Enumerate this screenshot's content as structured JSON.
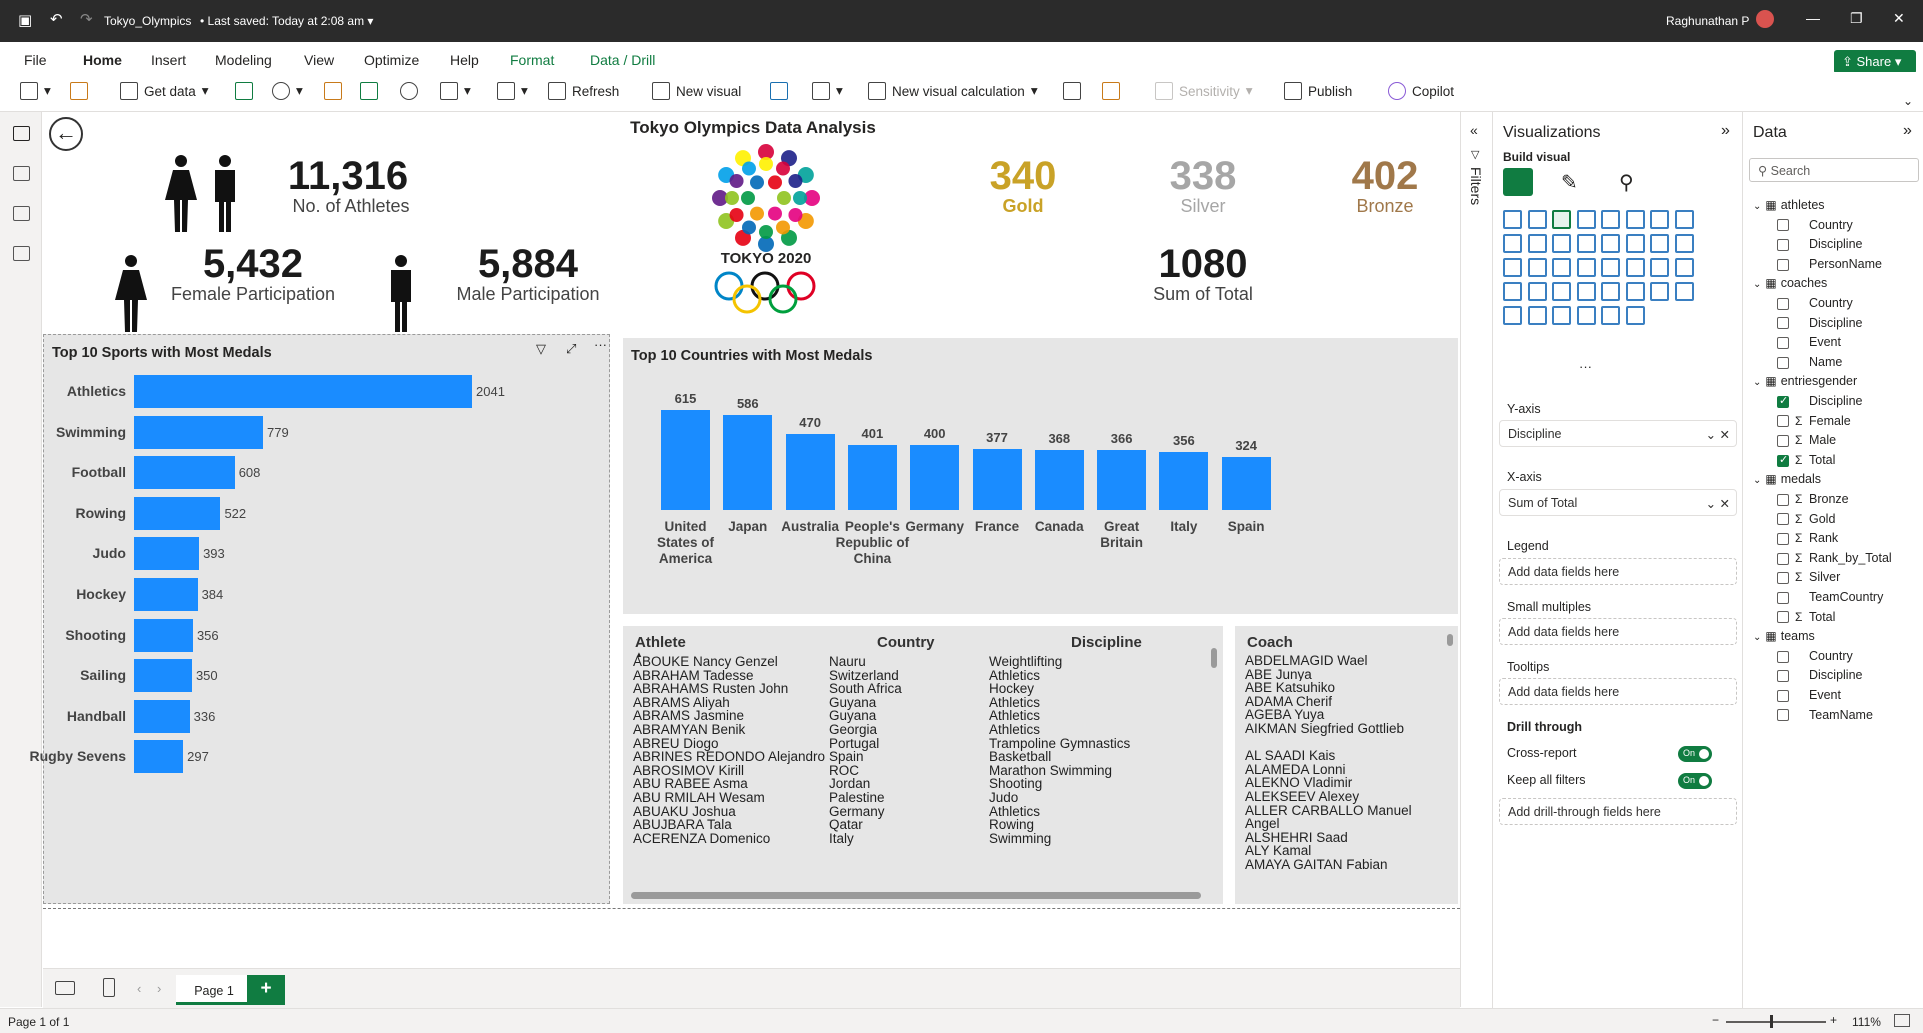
{
  "titlebar": {
    "filename": "Tokyo_Olympics",
    "saved": "Last saved: Today at 2:08 am",
    "user": "Raghunathan P"
  },
  "menu": {
    "tabs": [
      "File",
      "Home",
      "Insert",
      "Modeling",
      "View",
      "Optimize",
      "Help",
      "Format",
      "Data / Drill"
    ],
    "share": "Share"
  },
  "toolbar": {
    "get_data": "Get data",
    "refresh": "Refresh",
    "new_visual": "New visual",
    "new_visual_calc": "New visual calculation",
    "sensitivity": "Sensitivity",
    "publish": "Publish",
    "copilot": "Copilot"
  },
  "report": {
    "title": "Tokyo Olympics Data Analysis",
    "athletes_value": "11,316",
    "athletes_label": "No. of Athletes",
    "female_value": "5,432",
    "female_label": "Female Participation",
    "male_value": "5,884",
    "male_label": "Male Participation",
    "logo_text": "TOKYO 2020",
    "gold_value": "340",
    "gold_label": "Gold",
    "silver_value": "338",
    "silver_label": "Silver",
    "bronze_value": "402",
    "bronze_label": "Bronze",
    "total_value": "1080",
    "total_label": "Sum of Total",
    "gold_color": "#c9a227",
    "silver_color": "#a6a6a6",
    "bronze_color": "#a0784a"
  },
  "chart_data": [
    {
      "type": "bar",
      "orientation": "horizontal",
      "title": "Top 10 Sports with Most Medals",
      "categories": [
        "Athletics",
        "Swimming",
        "Football",
        "Rowing",
        "Judo",
        "Hockey",
        "Shooting",
        "Sailing",
        "Handball",
        "Rugby Sevens"
      ],
      "values": [
        2041,
        779,
        608,
        522,
        393,
        384,
        356,
        350,
        336,
        297
      ],
      "xlim": [
        0,
        2041
      ],
      "color": "#1a8cff"
    },
    {
      "type": "bar",
      "orientation": "vertical",
      "title": "Top 10 Countries with Most Medals",
      "categories": [
        "United States of America",
        "Japan",
        "Australia",
        "People's Republic of China",
        "Germany",
        "France",
        "Canada",
        "Great Britain",
        "Italy",
        "Spain"
      ],
      "values": [
        615,
        586,
        470,
        401,
        400,
        377,
        368,
        366,
        356,
        324
      ],
      "ylim": [
        0,
        615
      ],
      "color": "#1a8cff"
    }
  ],
  "athletes_table": {
    "headers": [
      "Athlete",
      "Country",
      "Discipline"
    ],
    "rows": [
      [
        "ABOUKE Nancy Genzel",
        "Nauru",
        "Weightlifting"
      ],
      [
        "ABRAHAM Tadesse",
        "Switzerland",
        "Athletics"
      ],
      [
        "ABRAHAMS Rusten John",
        "South Africa",
        "Hockey"
      ],
      [
        "ABRAMS Aliyah",
        "Guyana",
        "Athletics"
      ],
      [
        "ABRAMS Jasmine",
        "Guyana",
        "Athletics"
      ],
      [
        "ABRAMYAN Benik",
        "Georgia",
        "Athletics"
      ],
      [
        "ABREU Diogo",
        "Portugal",
        "Trampoline Gymnastics"
      ],
      [
        "ABRINES REDONDO Alejandro",
        "Spain",
        "Basketball"
      ],
      [
        "ABROSIMOV Kirill",
        "ROC",
        "Marathon Swimming"
      ],
      [
        "ABU RABEE Asma",
        "Jordan",
        "Shooting"
      ],
      [
        "ABU RMILAH Wesam",
        "Palestine",
        "Judo"
      ],
      [
        "ABUAKU Joshua",
        "Germany",
        "Athletics"
      ],
      [
        "ABUJBARA Tala",
        "Qatar",
        "Rowing"
      ],
      [
        "ACERENZA Domenico",
        "Italy",
        "Swimming"
      ]
    ]
  },
  "coach_table": {
    "header": "Coach",
    "rows": [
      "ABDELMAGID Wael",
      "ABE Junya",
      "ABE Katsuhiko",
      "ADAMA Cherif",
      "AGEBA Yuya",
      "AIKMAN Siegfried Gottlieb",
      "AL SAADI Kais",
      "ALAMEDA Lonni",
      "ALEKNO Vladimir",
      "ALEKSEEV Alexey",
      "ALLER CARBALLO Manuel Angel",
      "ALSHEHRI Saad",
      "ALY Kamal",
      "AMAYA GAITAN Fabian"
    ]
  },
  "page": {
    "tab": "Page 1",
    "status": "Page 1 of 1",
    "zoom": "111%"
  },
  "filters": {
    "label": "Filters"
  },
  "viz_pane": {
    "title": "Visualizations",
    "build": "Build visual",
    "yaxis_label": "Y-axis",
    "yaxis_field": "Discipline",
    "xaxis_label": "X-axis",
    "xaxis_field": "Sum of Total",
    "legend_label": "Legend",
    "small_multiples_label": "Small multiples",
    "tooltips_label": "Tooltips",
    "add_fields": "Add data fields here",
    "drill_label": "Drill through",
    "cross_report": "Cross-report",
    "keep_filters": "Keep all filters",
    "toggle_on": "On",
    "add_drill": "Add drill-through fields here"
  },
  "data_pane": {
    "title": "Data",
    "search_placeholder": "Search",
    "tables": [
      {
        "name": "athletes",
        "fields": [
          {
            "n": "Country",
            "s": false,
            "c": false
          },
          {
            "n": "Discipline",
            "s": false,
            "c": false
          },
          {
            "n": "PersonName",
            "s": false,
            "c": false
          }
        ]
      },
      {
        "name": "coaches",
        "fields": [
          {
            "n": "Country",
            "s": false,
            "c": false
          },
          {
            "n": "Discipline",
            "s": false,
            "c": false
          },
          {
            "n": "Event",
            "s": false,
            "c": false
          },
          {
            "n": "Name",
            "s": false,
            "c": false
          }
        ]
      },
      {
        "name": "entriesgender",
        "fields": [
          {
            "n": "Discipline",
            "s": false,
            "c": true
          },
          {
            "n": "Female",
            "s": true,
            "c": false
          },
          {
            "n": "Male",
            "s": true,
            "c": false
          },
          {
            "n": "Total",
            "s": true,
            "c": true
          }
        ]
      },
      {
        "name": "medals",
        "fields": [
          {
            "n": "Bronze",
            "s": true,
            "c": false
          },
          {
            "n": "Gold",
            "s": true,
            "c": false
          },
          {
            "n": "Rank",
            "s": true,
            "c": false
          },
          {
            "n": "Rank_by_Total",
            "s": true,
            "c": false
          },
          {
            "n": "Silver",
            "s": true,
            "c": false
          },
          {
            "n": "TeamCountry",
            "s": false,
            "c": false
          },
          {
            "n": "Total",
            "s": true,
            "c": false
          }
        ]
      },
      {
        "name": "teams",
        "fields": [
          {
            "n": "Country",
            "s": false,
            "c": false
          },
          {
            "n": "Discipline",
            "s": false,
            "c": false
          },
          {
            "n": "Event",
            "s": false,
            "c": false
          },
          {
            "n": "TeamName",
            "s": false,
            "c": false
          }
        ]
      }
    ]
  }
}
